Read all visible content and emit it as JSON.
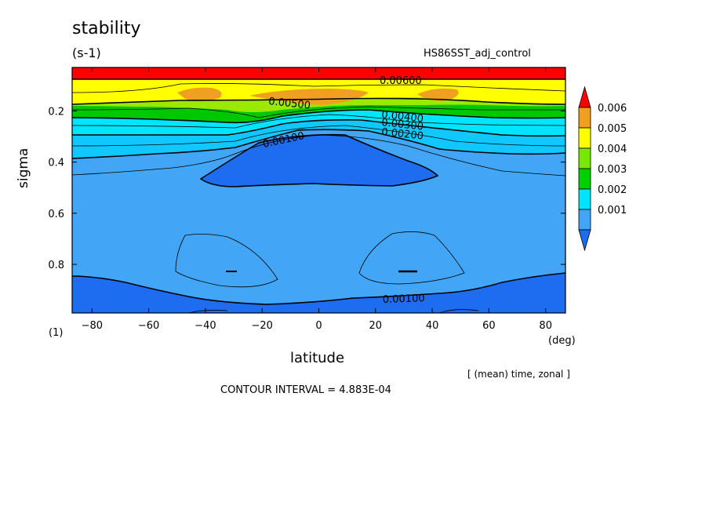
{
  "chart_data": {
    "type": "heatmap",
    "title": "stability",
    "units": "(s-1)",
    "source_label": "HS86SST_adj_control",
    "xlabel": "latitude",
    "x_units": "(deg)",
    "ylabel": "sigma",
    "y_units": "(1)",
    "x_range": [
      -87,
      87
    ],
    "y_range": [
      0.03,
      0.99
    ],
    "y_reversed": true,
    "x_ticks": [
      -80,
      -60,
      -40,
      -20,
      0,
      20,
      40,
      60,
      80
    ],
    "y_ticks": [
      0.2,
      0.4,
      0.6,
      0.8
    ],
    "colorbar": {
      "levels": [
        0.001,
        0.002,
        0.003,
        0.004,
        0.005,
        0.006
      ],
      "labels": [
        "0.006",
        "0.005",
        "0.004",
        "0.003",
        "0.002",
        "0.001"
      ],
      "colors": [
        "#1e6cf0",
        "#42a5f5",
        "#00e5ff",
        "#00d000",
        "#78e800",
        "#ffff00",
        "#f0a020",
        "#ff0000"
      ]
    },
    "contour_labels": [
      "0.00600",
      "0.00500",
      "0.00400",
      "0.00300",
      "0.00200",
      "0.00100",
      "0.00100"
    ],
    "averaging_note": "[ (mean) time, zonal ]",
    "contour_interval": "CONTOUR INTERVAL = 4.883E-04"
  }
}
